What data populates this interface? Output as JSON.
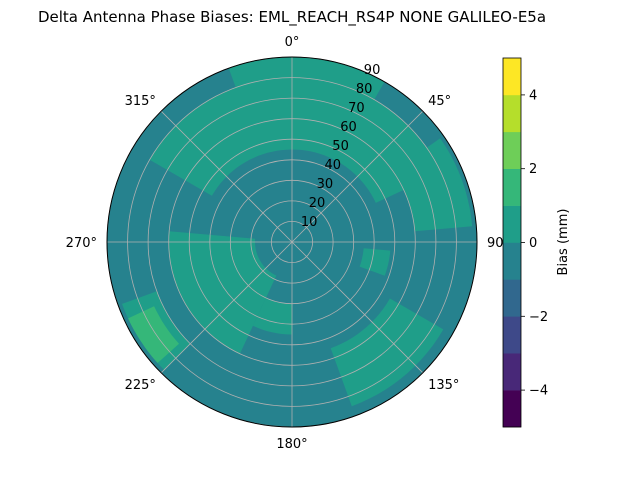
{
  "chart_data": {
    "type": "heatmap",
    "projection": "polar",
    "title": "Delta Antenna Phase Biases: EML_REACH_RS4P  NONE GALILEO-E5a",
    "theta_ticks": [
      {
        "deg": 0,
        "label": "0°"
      },
      {
        "deg": 45,
        "label": "45°"
      },
      {
        "deg": 90,
        "label": "90"
      },
      {
        "deg": 135,
        "label": "135°"
      },
      {
        "deg": 180,
        "label": "180°"
      },
      {
        "deg": 225,
        "label": "225°"
      },
      {
        "deg": 270,
        "label": "270°"
      },
      {
        "deg": 315,
        "label": "315°"
      }
    ],
    "theta_direction": "clockwise",
    "theta_zero": "top",
    "r_ticks": [
      "10",
      "20",
      "30",
      "40",
      "50",
      "60",
      "70",
      "80",
      "90"
    ],
    "r_range": [
      0,
      90
    ],
    "grid": true,
    "colorbar": {
      "label": "Bias (mm)",
      "range": [
        -5,
        5
      ],
      "levels": [
        -5,
        -4,
        -3,
        -2,
        -1,
        0,
        1,
        2,
        3,
        4,
        5
      ],
      "tick_labels": [
        "−4",
        "−2",
        "0",
        "2",
        "4"
      ],
      "tick_values": [
        -4,
        -2,
        0,
        2,
        4
      ],
      "colors": [
        "#440154",
        "#482878",
        "#3e4989",
        "#31688e",
        "#26828e",
        "#1f9e89",
        "#35b779",
        "#6ece58",
        "#b5de2b",
        "#fde725"
      ],
      "placement": "right"
    },
    "base_bias_mm": -0.5,
    "regions": [
      {
        "level_bias_mm": 0.5,
        "theta_from": 300,
        "theta_to": 65,
        "r_from": 45,
        "r_to": 80
      },
      {
        "level_bias_mm": 0.5,
        "theta_from": 340,
        "theta_to": 30,
        "r_from": 80,
        "r_to": 90
      },
      {
        "level_bias_mm": 0.5,
        "theta_from": 55,
        "theta_to": 85,
        "r_from": 60,
        "r_to": 88
      },
      {
        "level_bias_mm": 0.5,
        "theta_from": 95,
        "theta_to": 110,
        "r_from": 35,
        "r_to": 48
      },
      {
        "level_bias_mm": 0.5,
        "theta_from": 120,
        "theta_to": 160,
        "r_from": 55,
        "r_to": 85
      },
      {
        "level_bias_mm": 0.5,
        "theta_from": 205,
        "theta_to": 275,
        "r_from": 18,
        "r_to": 60
      },
      {
        "level_bias_mm": 0.5,
        "theta_from": 225,
        "theta_to": 250,
        "r_from": 70,
        "r_to": 88
      },
      {
        "level_bias_mm": 0.5,
        "theta_from": 180,
        "theta_to": 205,
        "r_from": 30,
        "r_to": 45
      },
      {
        "level_bias_mm": 1.5,
        "theta_from": 228,
        "theta_to": 245,
        "r_from": 74,
        "r_to": 88
      }
    ]
  }
}
